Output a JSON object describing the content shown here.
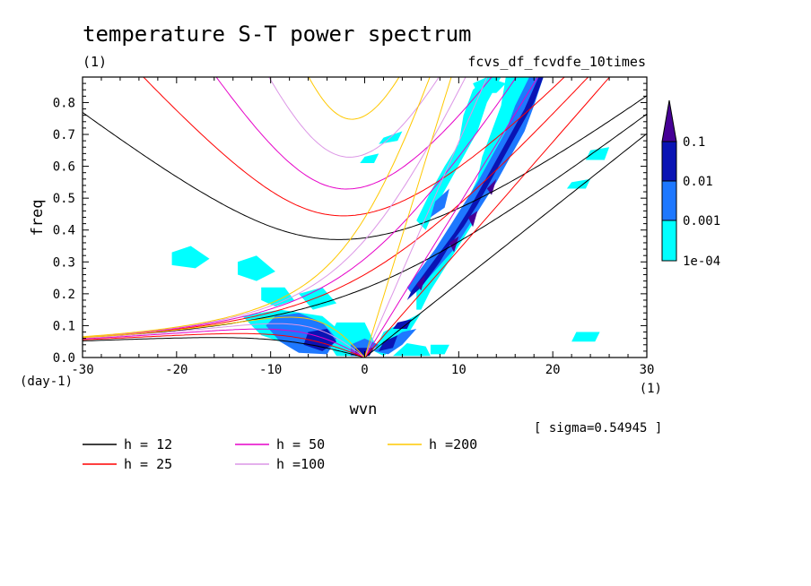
{
  "chart_data": {
    "type": "heatmap",
    "title": "temperature S-T power spectrum",
    "subtitle_left": "(1)",
    "subtitle_right": "fcvs_df_fcvdfe_10times",
    "xlabel": "wvn",
    "ylabel": "freq",
    "x_unit": "(1)",
    "y_unit": "(day-1)",
    "xlim": [
      -30,
      30
    ],
    "ylim": [
      0,
      0.88
    ],
    "x_ticks": [
      "-30",
      "-20",
      "-10",
      "0",
      "10",
      "20",
      "30"
    ],
    "y_ticks": [
      "0.0",
      "0.1",
      "0.2",
      "0.3",
      "0.4",
      "0.5",
      "0.6",
      "0.7",
      "0.8"
    ],
    "y_tick_values": [
      0,
      0.1,
      0.2,
      0.3,
      0.4,
      0.5,
      0.6,
      0.7,
      0.8
    ],
    "x_tick_values": [
      -30,
      -20,
      -10,
      0,
      10,
      20,
      30
    ],
    "annotation": "[ sigma=0.54945 ]",
    "colorbar": {
      "levels": [
        "1e-04",
        "0.001",
        "0.01",
        "0.1"
      ],
      "colors": [
        "#00ffff",
        "#1e78ff",
        "#0a14b4",
        "#460096"
      ]
    },
    "dispersion_curves": [
      {
        "label": "h = 12",
        "color": "#000000"
      },
      {
        "label": "h = 25",
        "color": "#ff0000"
      },
      {
        "label": "h = 50",
        "color": "#e600c8"
      },
      {
        "label": "h =100",
        "color": "#dc96e6"
      },
      {
        "label": "h =200",
        "color": "#ffc800"
      }
    ],
    "cyan_patches": [
      [
        [
          -20.5,
          0.33
        ],
        [
          -18.5,
          0.35
        ],
        [
          -16.5,
          0.31
        ],
        [
          -18,
          0.28
        ],
        [
          -20.5,
          0.29
        ]
      ],
      [
        [
          -13.5,
          0.3
        ],
        [
          -11.5,
          0.32
        ],
        [
          -9.5,
          0.27
        ],
        [
          -11.5,
          0.24
        ],
        [
          -13.5,
          0.26
        ]
      ],
      [
        [
          -11,
          0.22
        ],
        [
          -8.5,
          0.22
        ],
        [
          -7.5,
          0.18
        ],
        [
          -9.5,
          0.16
        ],
        [
          -11,
          0.18
        ]
      ],
      [
        [
          -13,
          0.13
        ],
        [
          -9,
          0.15
        ],
        [
          -4.5,
          0.13
        ],
        [
          -2.5,
          0.08
        ],
        [
          -3.5,
          0.03
        ],
        [
          -7,
          0.03
        ],
        [
          -11,
          0.07
        ]
      ],
      [
        [
          -7,
          0.2
        ],
        [
          -4.5,
          0.22
        ],
        [
          -3,
          0.17
        ],
        [
          -5.5,
          0.15
        ]
      ],
      [
        [
          -3,
          0.11
        ],
        [
          0,
          0.11
        ],
        [
          1,
          0.05
        ],
        [
          0,
          0.005
        ],
        [
          -3,
          0.005
        ],
        [
          -4,
          0.05
        ]
      ],
      [
        [
          1,
          0.02
        ],
        [
          2,
          0.08
        ],
        [
          4,
          0.11
        ],
        [
          6,
          0.14
        ],
        [
          4,
          0.045
        ],
        [
          2,
          0.005
        ]
      ],
      [
        [
          3,
          0.005
        ],
        [
          4.5,
          0.045
        ],
        [
          6.5,
          0.035
        ],
        [
          7,
          0.005
        ]
      ],
      [
        [
          5.5,
          0.22
        ],
        [
          7,
          0.3
        ],
        [
          8.5,
          0.37
        ],
        [
          10,
          0.43
        ],
        [
          11,
          0.5
        ],
        [
          12,
          0.56
        ],
        [
          12.5,
          0.63
        ],
        [
          13.5,
          0.71
        ],
        [
          14.5,
          0.79
        ],
        [
          15,
          0.88
        ],
        [
          19,
          0.88
        ],
        [
          18,
          0.8
        ],
        [
          17,
          0.73
        ],
        [
          15.5,
          0.66
        ],
        [
          14,
          0.58
        ],
        [
          12.5,
          0.5
        ],
        [
          11.5,
          0.42
        ],
        [
          10,
          0.35
        ],
        [
          8.5,
          0.28
        ],
        [
          7,
          0.21
        ],
        [
          6,
          0.15
        ],
        [
          5.5,
          0.15
        ]
      ],
      [
        [
          5.5,
          0.43
        ],
        [
          7,
          0.52
        ],
        [
          8.5,
          0.6
        ],
        [
          10,
          0.67
        ],
        [
          10.5,
          0.76
        ],
        [
          11.5,
          0.84
        ],
        [
          13,
          0.88
        ],
        [
          14.5,
          0.88
        ],
        [
          13,
          0.8
        ],
        [
          12,
          0.71
        ],
        [
          10.5,
          0.63
        ],
        [
          9,
          0.55
        ],
        [
          7.5,
          0.47
        ],
        [
          6.5,
          0.4
        ]
      ],
      [
        [
          11.5,
          0.86
        ],
        [
          13,
          0.88
        ],
        [
          15,
          0.86
        ],
        [
          14,
          0.83
        ],
        [
          12,
          0.83
        ]
      ],
      [
        [
          24,
          0.65
        ],
        [
          26,
          0.66
        ],
        [
          25.5,
          0.62
        ],
        [
          23.5,
          0.62
        ]
      ],
      [
        [
          22,
          0.55
        ],
        [
          24,
          0.56
        ],
        [
          23.5,
          0.53
        ],
        [
          21.5,
          0.53
        ]
      ],
      [
        [
          2,
          0.69
        ],
        [
          4,
          0.71
        ],
        [
          3.5,
          0.68
        ],
        [
          1.5,
          0.67
        ]
      ],
      [
        [
          0,
          0.63
        ],
        [
          1.5,
          0.64
        ],
        [
          1,
          0.61
        ],
        [
          -0.5,
          0.61
        ]
      ],
      [
        [
          22.5,
          0.08
        ],
        [
          25,
          0.08
        ],
        [
          24.5,
          0.05
        ],
        [
          22,
          0.05
        ]
      ],
      [
        [
          7,
          0.04
        ],
        [
          9,
          0.04
        ],
        [
          8.5,
          0.01
        ],
        [
          7,
          0.01
        ]
      ]
    ],
    "blue_patches": [
      [
        [
          -9.5,
          0.13
        ],
        [
          -7,
          0.14
        ],
        [
          -4.5,
          0.11
        ],
        [
          -3,
          0.06
        ],
        [
          -4,
          0.01
        ],
        [
          -7,
          0.015
        ],
        [
          -9,
          0.05
        ],
        [
          -10.5,
          0.1
        ]
      ],
      [
        [
          -1.5,
          0.04
        ],
        [
          0,
          0.06
        ],
        [
          1.5,
          0.04
        ],
        [
          0,
          0.005
        ],
        [
          -1.5,
          0.005
        ]
      ],
      [
        [
          1,
          0.02
        ],
        [
          2.5,
          0.05
        ],
        [
          4,
          0.08
        ],
        [
          5.5,
          0.09
        ],
        [
          4,
          0.04
        ],
        [
          2.5,
          0.01
        ]
      ],
      [
        [
          5,
          0.2
        ],
        [
          6.5,
          0.24
        ],
        [
          8,
          0.29
        ],
        [
          9.5,
          0.34
        ],
        [
          11,
          0.41
        ],
        [
          12.5,
          0.48
        ],
        [
          14,
          0.55
        ],
        [
          15.5,
          0.63
        ],
        [
          17,
          0.71
        ],
        [
          18,
          0.79
        ],
        [
          19,
          0.88
        ],
        [
          17.5,
          0.88
        ],
        [
          16,
          0.79
        ],
        [
          15,
          0.71
        ],
        [
          13.5,
          0.63
        ],
        [
          12,
          0.55
        ],
        [
          10.5,
          0.48
        ],
        [
          9,
          0.41
        ],
        [
          7.5,
          0.34
        ],
        [
          6,
          0.28
        ],
        [
          4.5,
          0.22
        ]
      ],
      [
        [
          7.5,
          0.49
        ],
        [
          9,
          0.53
        ],
        [
          8.5,
          0.47
        ],
        [
          7,
          0.44
        ]
      ]
    ],
    "navy_patches": [
      [
        [
          -6,
          0.08
        ],
        [
          -4,
          0.09
        ],
        [
          -3,
          0.05
        ],
        [
          -4.5,
          0.02
        ],
        [
          -6.5,
          0.04
        ]
      ],
      [
        [
          -1,
          0.03
        ],
        [
          1,
          0.03
        ],
        [
          0.5,
          0.005
        ],
        [
          -1,
          0.005
        ]
      ],
      [
        [
          2,
          0.05
        ],
        [
          3.5,
          0.07
        ],
        [
          3,
          0.03
        ],
        [
          1.5,
          0.02
        ]
      ],
      [
        [
          3.5,
          0.11
        ],
        [
          5,
          0.12
        ],
        [
          4.5,
          0.09
        ],
        [
          3,
          0.09
        ]
      ],
      [
        [
          4.5,
          0.18
        ],
        [
          6,
          0.22
        ],
        [
          7,
          0.26
        ],
        [
          8,
          0.3
        ],
        [
          9,
          0.35
        ],
        [
          10.5,
          0.41
        ],
        [
          12,
          0.48
        ],
        [
          13.5,
          0.56
        ],
        [
          15,
          0.64
        ],
        [
          16.5,
          0.72
        ],
        [
          18,
          0.8
        ],
        [
          19,
          0.88
        ],
        [
          18.5,
          0.88
        ],
        [
          17,
          0.78
        ],
        [
          15.5,
          0.7
        ],
        [
          14,
          0.62
        ],
        [
          12.5,
          0.54
        ],
        [
          11,
          0.46
        ],
        [
          9.5,
          0.39
        ],
        [
          8,
          0.33
        ],
        [
          6.5,
          0.27
        ],
        [
          5,
          0.21
        ]
      ]
    ],
    "purple_patches": [
      [
        [
          5.5,
          0.23
        ],
        [
          6.5,
          0.26
        ],
        [
          6,
          0.21
        ]
      ],
      [
        [
          9,
          0.36
        ],
        [
          10,
          0.38
        ],
        [
          9.5,
          0.33
        ]
      ],
      [
        [
          11,
          0.44
        ],
        [
          12,
          0.46
        ],
        [
          11.5,
          0.41
        ]
      ],
      [
        [
          13,
          0.53
        ],
        [
          14,
          0.56
        ],
        [
          13.5,
          0.51
        ]
      ]
    ]
  }
}
